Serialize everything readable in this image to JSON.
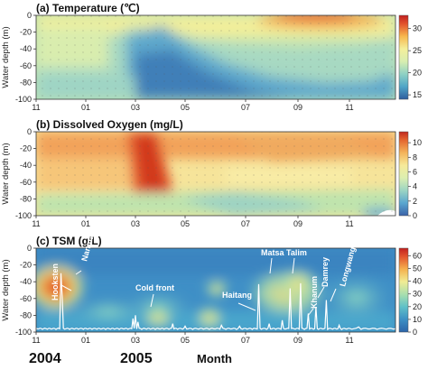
{
  "chart_data": [
    {
      "type": "heatmap",
      "title": "(a) Temperature (℃)",
      "ylabel": "Water depth (m)",
      "x_ticks": [
        "11",
        "01",
        "03",
        "05",
        "07",
        "09",
        "11"
      ],
      "y_ticks": [
        "0",
        "-20",
        "-40",
        "-60",
        "-80",
        "-100"
      ],
      "ylim": [
        -100,
        0
      ],
      "colorbar": {
        "ticks": [
          "30",
          "25",
          "20",
          "15"
        ],
        "min": 14,
        "max": 33,
        "colors": [
          "#2e5d9e",
          "#4fa5c7",
          "#8fd1c4",
          "#d8eeb0",
          "#f4ef9a",
          "#f7b84e",
          "#e2522c",
          "#c1201f"
        ]
      }
    },
    {
      "type": "heatmap",
      "title": "(b) Dissolved Oxygen (mg/L)",
      "ylabel": "Water depth (m)",
      "x_ticks": [
        "11",
        "01",
        "03",
        "05",
        "07",
        "09",
        "11"
      ],
      "y_ticks": [
        "0",
        "-20",
        "-40",
        "-60",
        "-80",
        "-100"
      ],
      "ylim": [
        -100,
        0
      ],
      "colorbar": {
        "ticks": [
          "10",
          "8",
          "6",
          "4",
          "2",
          "0"
        ],
        "min": 0,
        "max": 11.5,
        "colors": [
          "#3a62a8",
          "#5aa6cf",
          "#9bd4c3",
          "#dcefb0",
          "#f6ea99",
          "#f4b45b",
          "#e4662f",
          "#c1281f"
        ]
      }
    },
    {
      "type": "heatmap",
      "title": "(c) TSM (g/L)",
      "ylabel": "Water depth (m)",
      "x_ticks": [
        "11",
        "01",
        "03",
        "05",
        "07",
        "09",
        "11"
      ],
      "y_ticks": [
        "0",
        "-20",
        "-40",
        "-60",
        "-80",
        "-100"
      ],
      "ylim": [
        -100,
        0
      ],
      "colorbar": {
        "ticks": [
          "60",
          "50",
          "40",
          "30",
          "20",
          "10",
          "0"
        ],
        "min": 0,
        "max": 66,
        "colors": [
          "#2c64a8",
          "#3c8fc4",
          "#5fc0c8",
          "#a9dfae",
          "#f1ec93",
          "#f5b14e",
          "#e2542d",
          "#c1201f"
        ]
      },
      "events": [
        {
          "label": "Hooksten",
          "month": 12.0
        },
        {
          "label": "Nanmadol",
          "month": 12.0
        },
        {
          "label": "Cold front",
          "month": 15.0
        },
        {
          "label": "Haitang",
          "month": 19.5
        },
        {
          "label": "Matsa",
          "month": 20.7
        },
        {
          "label": "Talim",
          "month": 21.1
        },
        {
          "label": "Khanum",
          "month": 21.4
        },
        {
          "label": "Damrey",
          "month": 21.7
        },
        {
          "label": "Longwang",
          "month": 22.1
        }
      ]
    }
  ],
  "footer": {
    "year_2004": "2004",
    "year_2005": "2005",
    "month_label": "Month"
  }
}
